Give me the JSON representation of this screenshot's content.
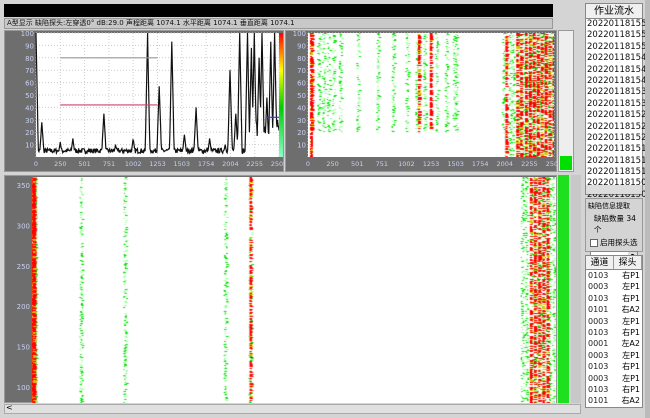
{
  "status_text": "A型显示 缺陷探头:左穿透0° dB:29.0 声程距离 1074.1 水平距离 1074.1 垂直距离 1074.1",
  "job_list": {
    "header": "作业流水",
    "items": [
      "20220118155",
      "20220118155",
      "20220118155",
      "20220118154",
      "20220118154",
      "20220118154",
      "20220118153",
      "20220118153",
      "20220118152",
      "20220118152",
      "20220118152",
      "20220118151",
      "20220118151",
      "20220118151",
      "20220118150",
      "20220118150"
    ]
  },
  "defect_group": {
    "title": "缺陷信息提取",
    "count_label": "缺陷数量 34 个",
    "checkbox_label": "启用探头选",
    "checked": false
  },
  "defect_table": {
    "headers": [
      "通道",
      "探头"
    ],
    "rows": [
      [
        "0103",
        "右P1"
      ],
      [
        "0003",
        "左P1"
      ],
      [
        "0103",
        "右P1"
      ],
      [
        "0101",
        "右A2"
      ],
      [
        "0003",
        "左P1"
      ],
      [
        "0103",
        "右P1"
      ],
      [
        "0001",
        "左A2"
      ],
      [
        "0003",
        "左P1"
      ],
      [
        "0103",
        "右P1"
      ],
      [
        "0003",
        "左P1"
      ],
      [
        "0103",
        "右P1"
      ],
      [
        "0101",
        "右A2"
      ],
      [
        "0001",
        "左A2"
      ]
    ]
  },
  "colors": {
    "red": "#ff0000",
    "green": "#00e000",
    "plot_bg": "#ffffff",
    "panel_bg": "#6e6e6e"
  },
  "hscroll_arrow": "<",
  "chart_data": [
    {
      "type": "line",
      "name": "A-scan",
      "xlim": [
        0,
        2505
      ],
      "ylim": [
        0,
        100
      ],
      "x_ticks": [
        "0",
        "250",
        "501",
        "751",
        "1002",
        "1253",
        "1503",
        "1754",
        "2004",
        "2255",
        "2505"
      ],
      "y_ticks": [
        "10",
        "20",
        "30",
        "40",
        "50",
        "60",
        "70",
        "80",
        "90",
        "100"
      ],
      "grid": true,
      "peaks": [
        [
          0,
          100
        ],
        [
          60,
          28
        ],
        [
          250,
          12
        ],
        [
          380,
          15
        ],
        [
          700,
          35
        ],
        [
          820,
          10
        ],
        [
          1002,
          15
        ],
        [
          1150,
          100
        ],
        [
          1270,
          57
        ],
        [
          1400,
          93
        ],
        [
          1530,
          18
        ],
        [
          1650,
          40
        ],
        [
          1790,
          15
        ],
        [
          1950,
          10
        ],
        [
          2000,
          70
        ],
        [
          2060,
          35
        ],
        [
          2100,
          100
        ],
        [
          2180,
          100
        ],
        [
          2220,
          88
        ],
        [
          2250,
          100
        ],
        [
          2300,
          80
        ],
        [
          2330,
          100
        ],
        [
          2380,
          48
        ],
        [
          2420,
          93
        ],
        [
          2460,
          100
        ],
        [
          2490,
          30
        ]
      ],
      "gates": [
        {
          "y": 80,
          "x": [
            250,
            1253
          ],
          "color": "#999999"
        },
        {
          "y": 42,
          "x": [
            250,
            1253
          ],
          "color": "#d04070"
        },
        {
          "y": 32,
          "x": [
            2380,
            2505
          ],
          "color": "#2040ff"
        }
      ]
    },
    {
      "type": "heatmap",
      "name": "B-scan",
      "xlim": [
        0,
        2505
      ],
      "ylim": [
        0,
        100
      ],
      "x_ticks": [
        "0",
        "250",
        "501",
        "751",
        "1002",
        "1253",
        "1503",
        "1754",
        "2004",
        "2255",
        "2505"
      ],
      "y_ticks": [
        "10",
        "20",
        "30",
        "40",
        "50",
        "60",
        "70",
        "80",
        "90",
        "100"
      ],
      "red_columns": [
        20,
        30,
        1120,
        1240,
        2010,
        2120,
        2160,
        2210,
        2250,
        2290,
        2330,
        2370,
        2410,
        2450,
        2490
      ],
      "green_columns": [
        100,
        150,
        200,
        250,
        320,
        500,
        700,
        860,
        1000,
        1100,
        1180,
        1300,
        1400,
        1480,
        1500,
        1980,
        2050,
        2080,
        2140,
        2190,
        2230,
        2270,
        2310,
        2350,
        2390,
        2430,
        2470
      ]
    },
    {
      "type": "heatmap",
      "name": "main-scan",
      "ylim": [
        80,
        360
      ],
      "y_ticks": [
        "100",
        "150",
        "200",
        "250",
        "300",
        "350"
      ],
      "red_columns": [
        0,
        1,
        2,
        3,
        4,
        5,
        1040,
        2380,
        2400,
        2420,
        2440,
        2460
      ],
      "green_columns": [
        6,
        7,
        8,
        9,
        230,
        440,
        920,
        1040,
        2340,
        2360,
        2390,
        2410,
        2430,
        2450,
        2470,
        2490
      ]
    }
  ]
}
